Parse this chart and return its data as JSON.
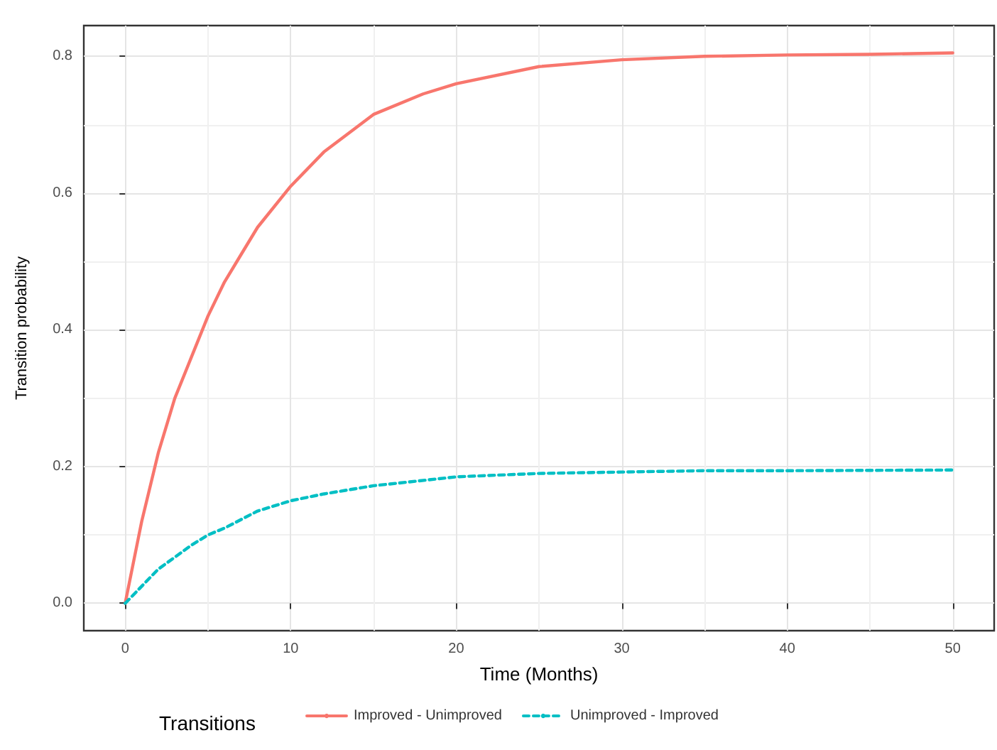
{
  "chart_data": {
    "type": "line",
    "xlabel": "Time (Months)",
    "ylabel": "Transition probability",
    "legend_title": "Transitions",
    "legend": "bottom",
    "grid": true,
    "marker": "none",
    "xlim": [
      -2.5,
      52.5
    ],
    "xticks": [
      0,
      10,
      20,
      30,
      40,
      50
    ],
    "ylim": [
      -0.04,
      0.845
    ],
    "yticks": [
      {
        "value": 0,
        "label": "0.0"
      },
      {
        "value": 0.2,
        "label": "0.2"
      },
      {
        "value": 0.4,
        "label": "0.4"
      },
      {
        "value": 0.6,
        "label": "0.6"
      },
      {
        "value": 0.8,
        "label": "0.8"
      }
    ],
    "series": [
      {
        "name": "Improved - Unimproved",
        "color": "#f8766d",
        "line_style": "solid",
        "x": [
          0,
          1,
          2,
          3,
          4,
          5,
          6,
          7,
          8,
          10,
          12,
          15,
          18,
          20,
          25,
          30,
          35,
          40,
          45,
          50
        ],
        "values": [
          0,
          0.12,
          0.22,
          0.3,
          0.36,
          0.42,
          0.47,
          0.51,
          0.55,
          0.61,
          0.66,
          0.715,
          0.745,
          0.76,
          0.785,
          0.795,
          0.8,
          0.802,
          0.803,
          0.805
        ]
      },
      {
        "name": "Unimproved - Improved",
        "color": "#00bfc4",
        "line_style": "dashed",
        "x": [
          0,
          2,
          4,
          5,
          6,
          8,
          10,
          12,
          15,
          20,
          25,
          30,
          35,
          40,
          50
        ],
        "values": [
          0,
          0.05,
          0.085,
          0.1,
          0.11,
          0.135,
          0.15,
          0.16,
          0.172,
          0.185,
          0.19,
          0.192,
          0.194,
          0.194,
          0.195
        ]
      }
    ]
  }
}
